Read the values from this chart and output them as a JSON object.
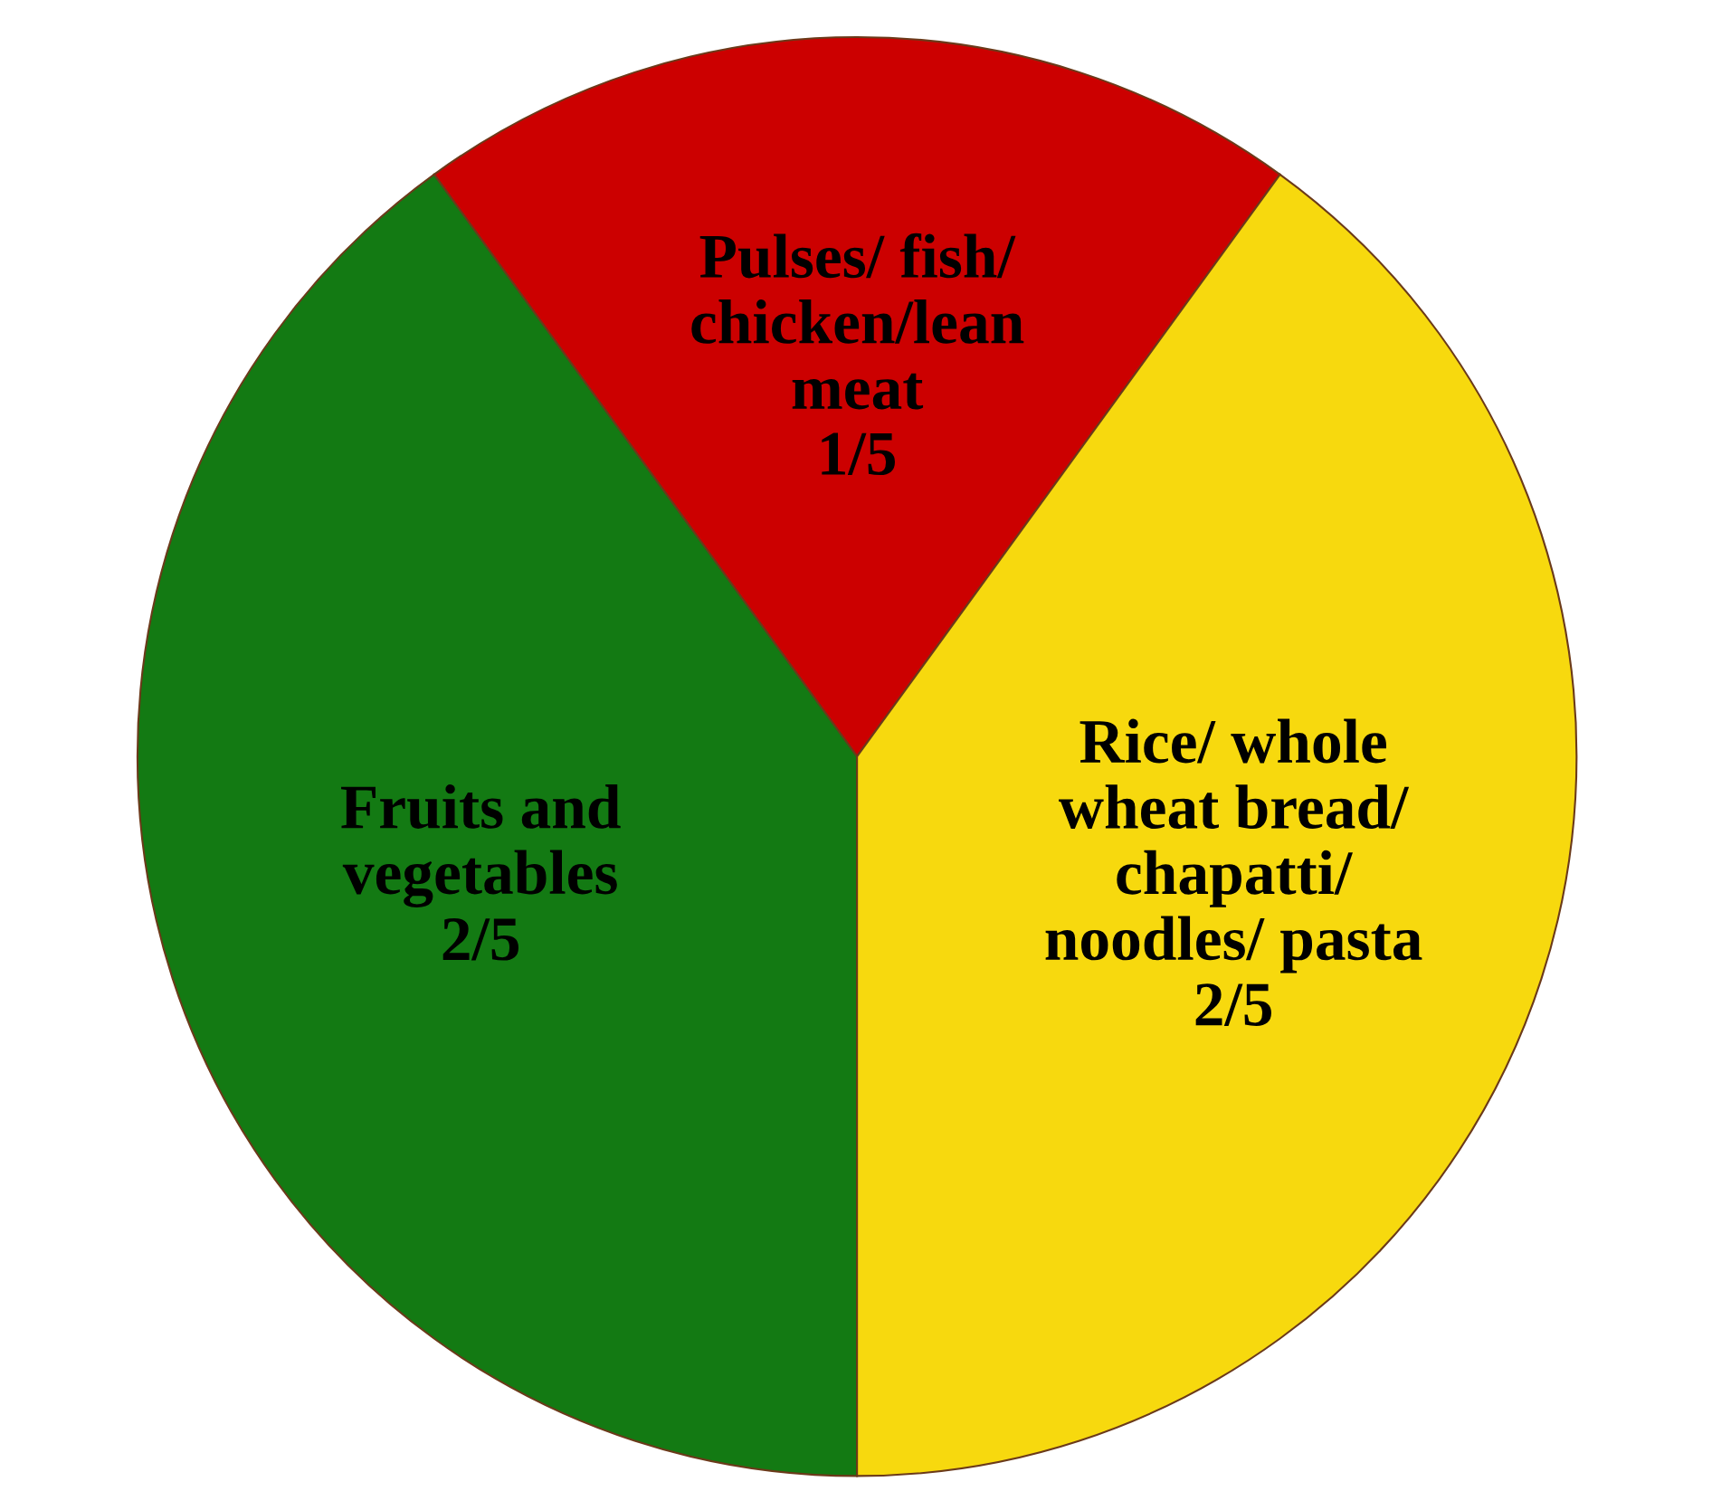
{
  "chart_data": {
    "type": "pie",
    "categories": [
      "Pulses/ fish/\nchicken/lean\nmeat",
      "Fruits and\nvegetables",
      "Rice/ whole\nwheat bread/\nchapatti/\nnoodles/ pasta"
    ],
    "values": [
      0.2,
      0.4,
      0.4
    ],
    "value_labels": [
      "1/5",
      "2/5",
      "2/5"
    ],
    "colors": [
      "#cc0000",
      "#137a13",
      "#f7d90e"
    ]
  }
}
